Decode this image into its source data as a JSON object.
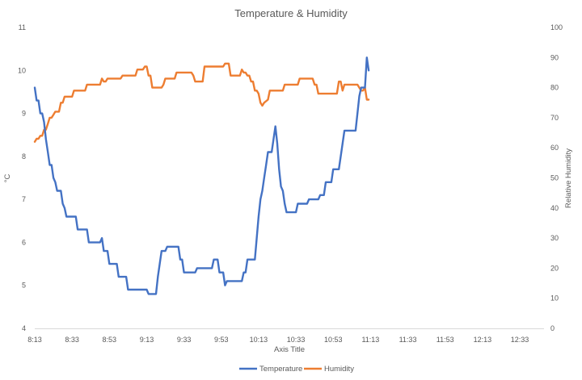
{
  "chart_data": {
    "type": "line",
    "title": "Temperature & Humidity",
    "xlabel": "Axis Title",
    "ylabel_left": "°C",
    "ylabel_right": "Relative Humidity",
    "x_ticks": [
      "8:13",
      "8:33",
      "8:53",
      "9:13",
      "9:33",
      "9:53",
      "10:13",
      "10:33",
      "10:53",
      "11:13",
      "11:33",
      "11:53",
      "12:13",
      "12:33"
    ],
    "y_left_ticks": [
      "4",
      "5",
      "6",
      "7",
      "8",
      "9",
      "10",
      "11"
    ],
    "y_right_ticks": [
      "0",
      "10",
      "20",
      "30",
      "40",
      "50",
      "60",
      "70",
      "80",
      "90",
      "100"
    ],
    "ylim_left": [
      4,
      11
    ],
    "ylim_right": [
      0,
      100
    ],
    "x_unit": "minutes",
    "xlim": [
      "8:13",
      "12:46"
    ],
    "grid": false,
    "legend_position": "bottom",
    "series": [
      {
        "name": "Temperature",
        "axis": "left",
        "color": "#4472C4",
        "points": [
          [
            "8:13",
            9.6
          ],
          [
            "8:14",
            9.3
          ],
          [
            "8:15",
            9.3
          ],
          [
            "8:16",
            9.0
          ],
          [
            "8:17",
            9.0
          ],
          [
            "8:18",
            8.8
          ],
          [
            "8:19",
            8.4
          ],
          [
            "8:20",
            8.1
          ],
          [
            "8:21",
            7.8
          ],
          [
            "8:22",
            7.8
          ],
          [
            "8:23",
            7.5
          ],
          [
            "8:24",
            7.4
          ],
          [
            "8:25",
            7.2
          ],
          [
            "8:27",
            7.2
          ],
          [
            "8:28",
            6.9
          ],
          [
            "8:29",
            6.8
          ],
          [
            "8:30",
            6.6
          ],
          [
            "8:35",
            6.6
          ],
          [
            "8:36",
            6.3
          ],
          [
            "8:41",
            6.3
          ],
          [
            "8:42",
            6.0
          ],
          [
            "8:48",
            6.0
          ],
          [
            "8:49",
            6.1
          ],
          [
            "8:50",
            5.8
          ],
          [
            "8:52",
            5.8
          ],
          [
            "8:53",
            5.5
          ],
          [
            "8:57",
            5.5
          ],
          [
            "8:58",
            5.2
          ],
          [
            "9:02",
            5.2
          ],
          [
            "9:03",
            4.9
          ],
          [
            "9:13",
            4.9
          ],
          [
            "9:14",
            4.8
          ],
          [
            "9:18",
            4.8
          ],
          [
            "9:19",
            5.2
          ],
          [
            "9:20",
            5.5
          ],
          [
            "9:21",
            5.8
          ],
          [
            "9:23",
            5.8
          ],
          [
            "9:24",
            5.9
          ],
          [
            "9:30",
            5.9
          ],
          [
            "9:31",
            5.6
          ],
          [
            "9:32",
            5.6
          ],
          [
            "9:33",
            5.3
          ],
          [
            "9:39",
            5.3
          ],
          [
            "9:40",
            5.4
          ],
          [
            "9:48",
            5.4
          ],
          [
            "9:49",
            5.6
          ],
          [
            "9:51",
            5.6
          ],
          [
            "9:52",
            5.3
          ],
          [
            "9:54",
            5.3
          ],
          [
            "9:55",
            5.0
          ],
          [
            "9:56",
            5.1
          ],
          [
            "10:04",
            5.1
          ],
          [
            "10:05",
            5.3
          ],
          [
            "10:06",
            5.3
          ],
          [
            "10:07",
            5.6
          ],
          [
            "10:11",
            5.6
          ],
          [
            "10:12",
            6.1
          ],
          [
            "10:13",
            6.6
          ],
          [
            "10:14",
            7.0
          ],
          [
            "10:15",
            7.2
          ],
          [
            "10:16",
            7.5
          ],
          [
            "10:17",
            7.8
          ],
          [
            "10:18",
            8.1
          ],
          [
            "10:20",
            8.1
          ],
          [
            "10:21",
            8.4
          ],
          [
            "10:22",
            8.7
          ],
          [
            "10:23",
            8.3
          ],
          [
            "10:24",
            7.7
          ],
          [
            "10:25",
            7.3
          ],
          [
            "10:26",
            7.2
          ],
          [
            "10:27",
            6.9
          ],
          [
            "10:28",
            6.7
          ],
          [
            "10:33",
            6.7
          ],
          [
            "10:34",
            6.9
          ],
          [
            "10:39",
            6.9
          ],
          [
            "10:40",
            7.0
          ],
          [
            "10:45",
            7.0
          ],
          [
            "10:46",
            7.1
          ],
          [
            "10:48",
            7.1
          ],
          [
            "10:49",
            7.4
          ],
          [
            "10:52",
            7.4
          ],
          [
            "10:53",
            7.7
          ],
          [
            "10:56",
            7.7
          ],
          [
            "10:57",
            8.0
          ],
          [
            "10:58",
            8.3
          ],
          [
            "10:59",
            8.6
          ],
          [
            "11:05",
            8.6
          ],
          [
            "11:06",
            9.0
          ],
          [
            "11:07",
            9.4
          ],
          [
            "11:08",
            9.6
          ],
          [
            "11:10",
            9.6
          ],
          [
            "11:11",
            10.3
          ],
          [
            "11:12",
            10.0
          ]
        ]
      },
      {
        "name": "Humidity",
        "axis": "right",
        "color": "#ED7D31",
        "points": [
          [
            "8:13",
            62
          ],
          [
            "8:14",
            63
          ],
          [
            "8:15",
            63
          ],
          [
            "8:16",
            64
          ],
          [
            "8:17",
            64
          ],
          [
            "8:18",
            66
          ],
          [
            "8:19",
            66
          ],
          [
            "8:20",
            68
          ],
          [
            "8:21",
            70
          ],
          [
            "8:22",
            70
          ],
          [
            "8:23",
            71
          ],
          [
            "8:24",
            72
          ],
          [
            "8:26",
            72
          ],
          [
            "8:27",
            75
          ],
          [
            "8:28",
            75
          ],
          [
            "8:29",
            77
          ],
          [
            "8:33",
            77
          ],
          [
            "8:34",
            79
          ],
          [
            "8:40",
            79
          ],
          [
            "8:41",
            81
          ],
          [
            "8:48",
            81
          ],
          [
            "8:49",
            83
          ],
          [
            "8:50",
            82
          ],
          [
            "8:51",
            82
          ],
          [
            "8:52",
            83
          ],
          [
            "8:59",
            83
          ],
          [
            "9:00",
            84
          ],
          [
            "9:07",
            84
          ],
          [
            "9:08",
            86
          ],
          [
            "9:11",
            86
          ],
          [
            "9:12",
            87
          ],
          [
            "9:13",
            87
          ],
          [
            "9:14",
            84
          ],
          [
            "9:15",
            84
          ],
          [
            "9:16",
            80
          ],
          [
            "9:21",
            80
          ],
          [
            "9:22",
            81
          ],
          [
            "9:23",
            83
          ],
          [
            "9:28",
            83
          ],
          [
            "9:29",
            85
          ],
          [
            "9:37",
            85
          ],
          [
            "9:38",
            84
          ],
          [
            "9:39",
            82
          ],
          [
            "9:43",
            82
          ],
          [
            "9:44",
            87
          ],
          [
            "9:54",
            87
          ],
          [
            "9:55",
            88
          ],
          [
            "9:57",
            88
          ],
          [
            "9:58",
            84
          ],
          [
            "10:03",
            84
          ],
          [
            "10:04",
            86
          ],
          [
            "10:05",
            85
          ],
          [
            "10:06",
            85
          ],
          [
            "10:07",
            84
          ],
          [
            "10:08",
            84
          ],
          [
            "10:09",
            82
          ],
          [
            "10:10",
            82
          ],
          [
            "10:11",
            79
          ],
          [
            "10:12",
            79
          ],
          [
            "10:13",
            78
          ],
          [
            "10:14",
            75
          ],
          [
            "10:15",
            74
          ],
          [
            "10:16",
            75
          ],
          [
            "10:18",
            76
          ],
          [
            "10:19",
            79
          ],
          [
            "10:26",
            79
          ],
          [
            "10:27",
            81
          ],
          [
            "10:34",
            81
          ],
          [
            "10:35",
            83
          ],
          [
            "10:42",
            83
          ],
          [
            "10:43",
            81
          ],
          [
            "10:44",
            81
          ],
          [
            "10:45",
            78
          ],
          [
            "10:55",
            78
          ],
          [
            "10:56",
            82
          ],
          [
            "10:57",
            82
          ],
          [
            "10:58",
            79
          ],
          [
            "10:59",
            81
          ],
          [
            "11:06",
            81
          ],
          [
            "11:07",
            80
          ],
          [
            "11:08",
            79
          ],
          [
            "11:09",
            79
          ],
          [
            "11:10",
            80
          ],
          [
            "11:11",
            76
          ],
          [
            "11:12",
            76
          ]
        ]
      }
    ]
  }
}
